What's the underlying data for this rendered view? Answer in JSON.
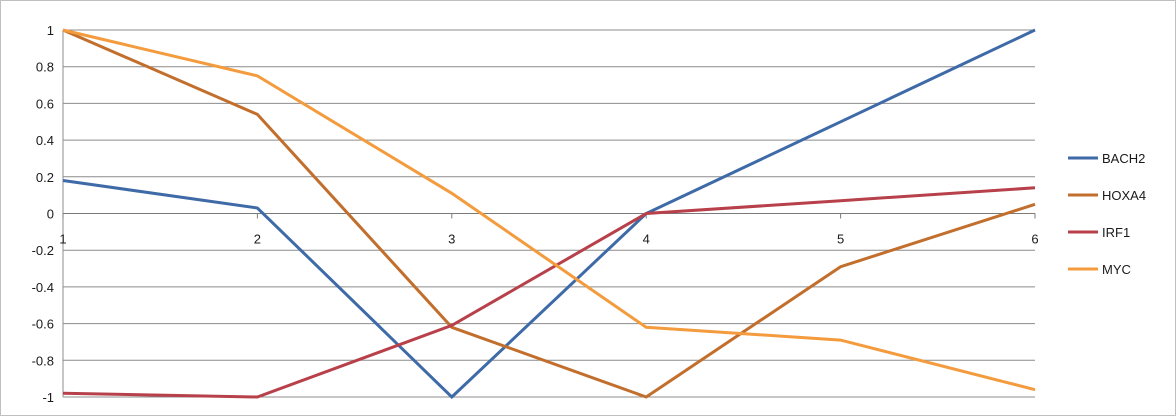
{
  "chart_data": {
    "type": "line",
    "title": "",
    "xlabel": "",
    "ylabel": "",
    "x": [
      1,
      2,
      3,
      4,
      5,
      6
    ],
    "x_tick_labels": [
      "1",
      "2",
      "3",
      "4",
      "5",
      "6"
    ],
    "ylim": [
      -1,
      1
    ],
    "y_ticks": [
      1,
      0.8,
      0.6,
      0.4,
      0.2,
      0,
      -0.2,
      -0.4,
      -0.6,
      -0.8,
      -1
    ],
    "y_tick_labels": [
      "1",
      "0.8",
      "0.6",
      "0.4",
      "0.2",
      "0",
      "-0.2",
      "-0.4",
      "-0.6",
      "-0.8",
      "-1"
    ],
    "grid": true,
    "legend_position": "right",
    "series": [
      {
        "name": "BACH2",
        "color": "#3f6aa8",
        "values": [
          0.18,
          0.03,
          -1.0,
          0.0,
          0.5,
          1.0
        ]
      },
      {
        "name": "HOXA4",
        "color": "#c26e2c",
        "values": [
          1.0,
          0.54,
          -0.62,
          -1.0,
          -0.29,
          0.05
        ]
      },
      {
        "name": "IRF1",
        "color": "#b8404a",
        "values": [
          -0.98,
          -1.0,
          -0.61,
          0.0,
          0.07,
          0.14
        ]
      },
      {
        "name": "MYC",
        "color": "#f39b3d",
        "values": [
          1.0,
          0.75,
          0.11,
          -0.62,
          -0.69,
          -0.96
        ]
      }
    ]
  }
}
